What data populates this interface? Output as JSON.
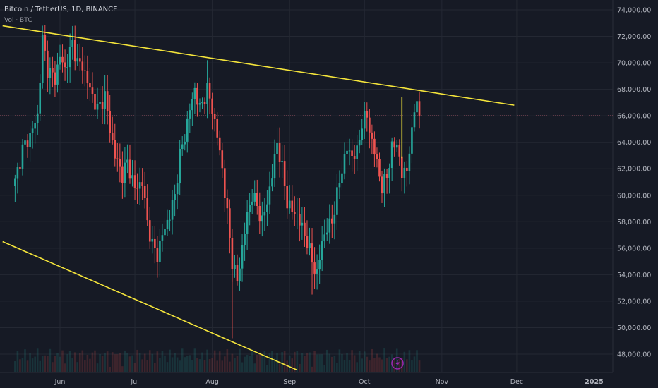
{
  "header": {
    "symbol_line": "Bitcoin / TetherUS, 1D, BINANCE",
    "volume_line": "Vol · BTC"
  },
  "colors": {
    "background": "#161a25",
    "grid": "#242833",
    "up": "#26a69a",
    "down": "#ef5350",
    "trendline": "#f5e53b",
    "price_line": "#d16a7a",
    "axis_text": "#b2b5be",
    "event_icon": "#9c27b0"
  },
  "event_icon": "lightning-icon",
  "chart_data": {
    "type": "candlestick",
    "y_axis": {
      "ylim": [
        46500,
        75000
      ],
      "ticks": [
        48000,
        50000,
        52000,
        54000,
        56000,
        58000,
        60000,
        62000,
        64000,
        66000,
        68000,
        70000,
        72000,
        74000
      ],
      "tick_labels": [
        "48,000.00",
        "50,000.00",
        "52,000.00",
        "54,000.00",
        "56,000.00",
        "58,000.00",
        "60,000.00",
        "62,000.00",
        "64,000.00",
        "66,000.00",
        "68,000.00",
        "70,000.00",
        "72,000.00",
        "74,000.00"
      ]
    },
    "x_axis": {
      "labels": [
        "Jun",
        "Jul",
        "Aug",
        "Sep",
        "Oct",
        "Nov",
        "Dec",
        "2025"
      ],
      "label_days": [
        18,
        48,
        79,
        110,
        140,
        171,
        201,
        232
      ],
      "bold": [
        "2025"
      ]
    },
    "horizontal_line": {
      "price": 66000
    },
    "trendlines": [
      {
        "from": {
          "day": -5,
          "price": 72800
        },
        "to": {
          "day": 200,
          "price": 66800
        }
      },
      {
        "from": {
          "day": -5,
          "price": 56500
        },
        "to": {
          "day": 113,
          "price": 46800
        }
      }
    ],
    "vertical_marker": {
      "day": 155,
      "price_low": 62800,
      "price_high": 67400
    },
    "waypoints": [
      [
        0,
        61000
      ],
      [
        3,
        63500
      ],
      [
        6,
        64500
      ],
      [
        9,
        66000
      ],
      [
        11,
        71800
      ],
      [
        13,
        69500
      ],
      [
        16,
        68800
      ],
      [
        18,
        70500
      ],
      [
        20,
        69500
      ],
      [
        23,
        71500
      ],
      [
        25,
        70000
      ],
      [
        27,
        69800
      ],
      [
        30,
        68000
      ],
      [
        33,
        66500
      ],
      [
        36,
        67500
      ],
      [
        38,
        65000
      ],
      [
        40,
        63000
      ],
      [
        43,
        61500
      ],
      [
        45,
        62500
      ],
      [
        48,
        60500
      ],
      [
        51,
        61000
      ],
      [
        53,
        58000
      ],
      [
        55,
        56200
      ],
      [
        57,
        55500
      ],
      [
        59,
        57000
      ],
      [
        62,
        58500
      ],
      [
        64,
        60000
      ],
      [
        66,
        63000
      ],
      [
        68,
        64500
      ],
      [
        70,
        66500
      ],
      [
        72,
        68000
      ],
      [
        74,
        66500
      ],
      [
        77,
        68000
      ],
      [
        79,
        66500
      ],
      [
        81,
        64500
      ],
      [
        83,
        62000
      ],
      [
        85,
        58500
      ],
      [
        87,
        55000
      ],
      [
        89,
        53500
      ],
      [
        91,
        56000
      ],
      [
        93,
        58500
      ],
      [
        95,
        60000
      ],
      [
        97,
        59200
      ],
      [
        99,
        58000
      ],
      [
        101,
        59500
      ],
      [
        103,
        61500
      ],
      [
        105,
        64000
      ],
      [
        107,
        62000
      ],
      [
        109,
        59500
      ],
      [
        111,
        58800
      ],
      [
        113,
        58500
      ],
      [
        115,
        57500
      ],
      [
        117,
        56500
      ],
      [
        119,
        55000
      ],
      [
        121,
        54000
      ],
      [
        123,
        56500
      ],
      [
        125,
        57500
      ],
      [
        127,
        58000
      ],
      [
        129,
        60000
      ],
      [
        131,
        62000
      ],
      [
        133,
        63500
      ],
      [
        135,
        63000
      ],
      [
        137,
        63200
      ],
      [
        139,
        65500
      ],
      [
        141,
        66000
      ],
      [
        143,
        64000
      ],
      [
        145,
        62500
      ],
      [
        147,
        60500
      ],
      [
        149,
        61500
      ],
      [
        151,
        63500
      ],
      [
        153,
        64000
      ],
      [
        155,
        61500
      ],
      [
        157,
        62000
      ],
      [
        158,
        63500
      ],
      [
        159,
        64500
      ],
      [
        160,
        66500
      ],
      [
        161,
        67500
      ],
      [
        162,
        65500
      ]
    ],
    "volume_note": "volume bars along bottom"
  }
}
